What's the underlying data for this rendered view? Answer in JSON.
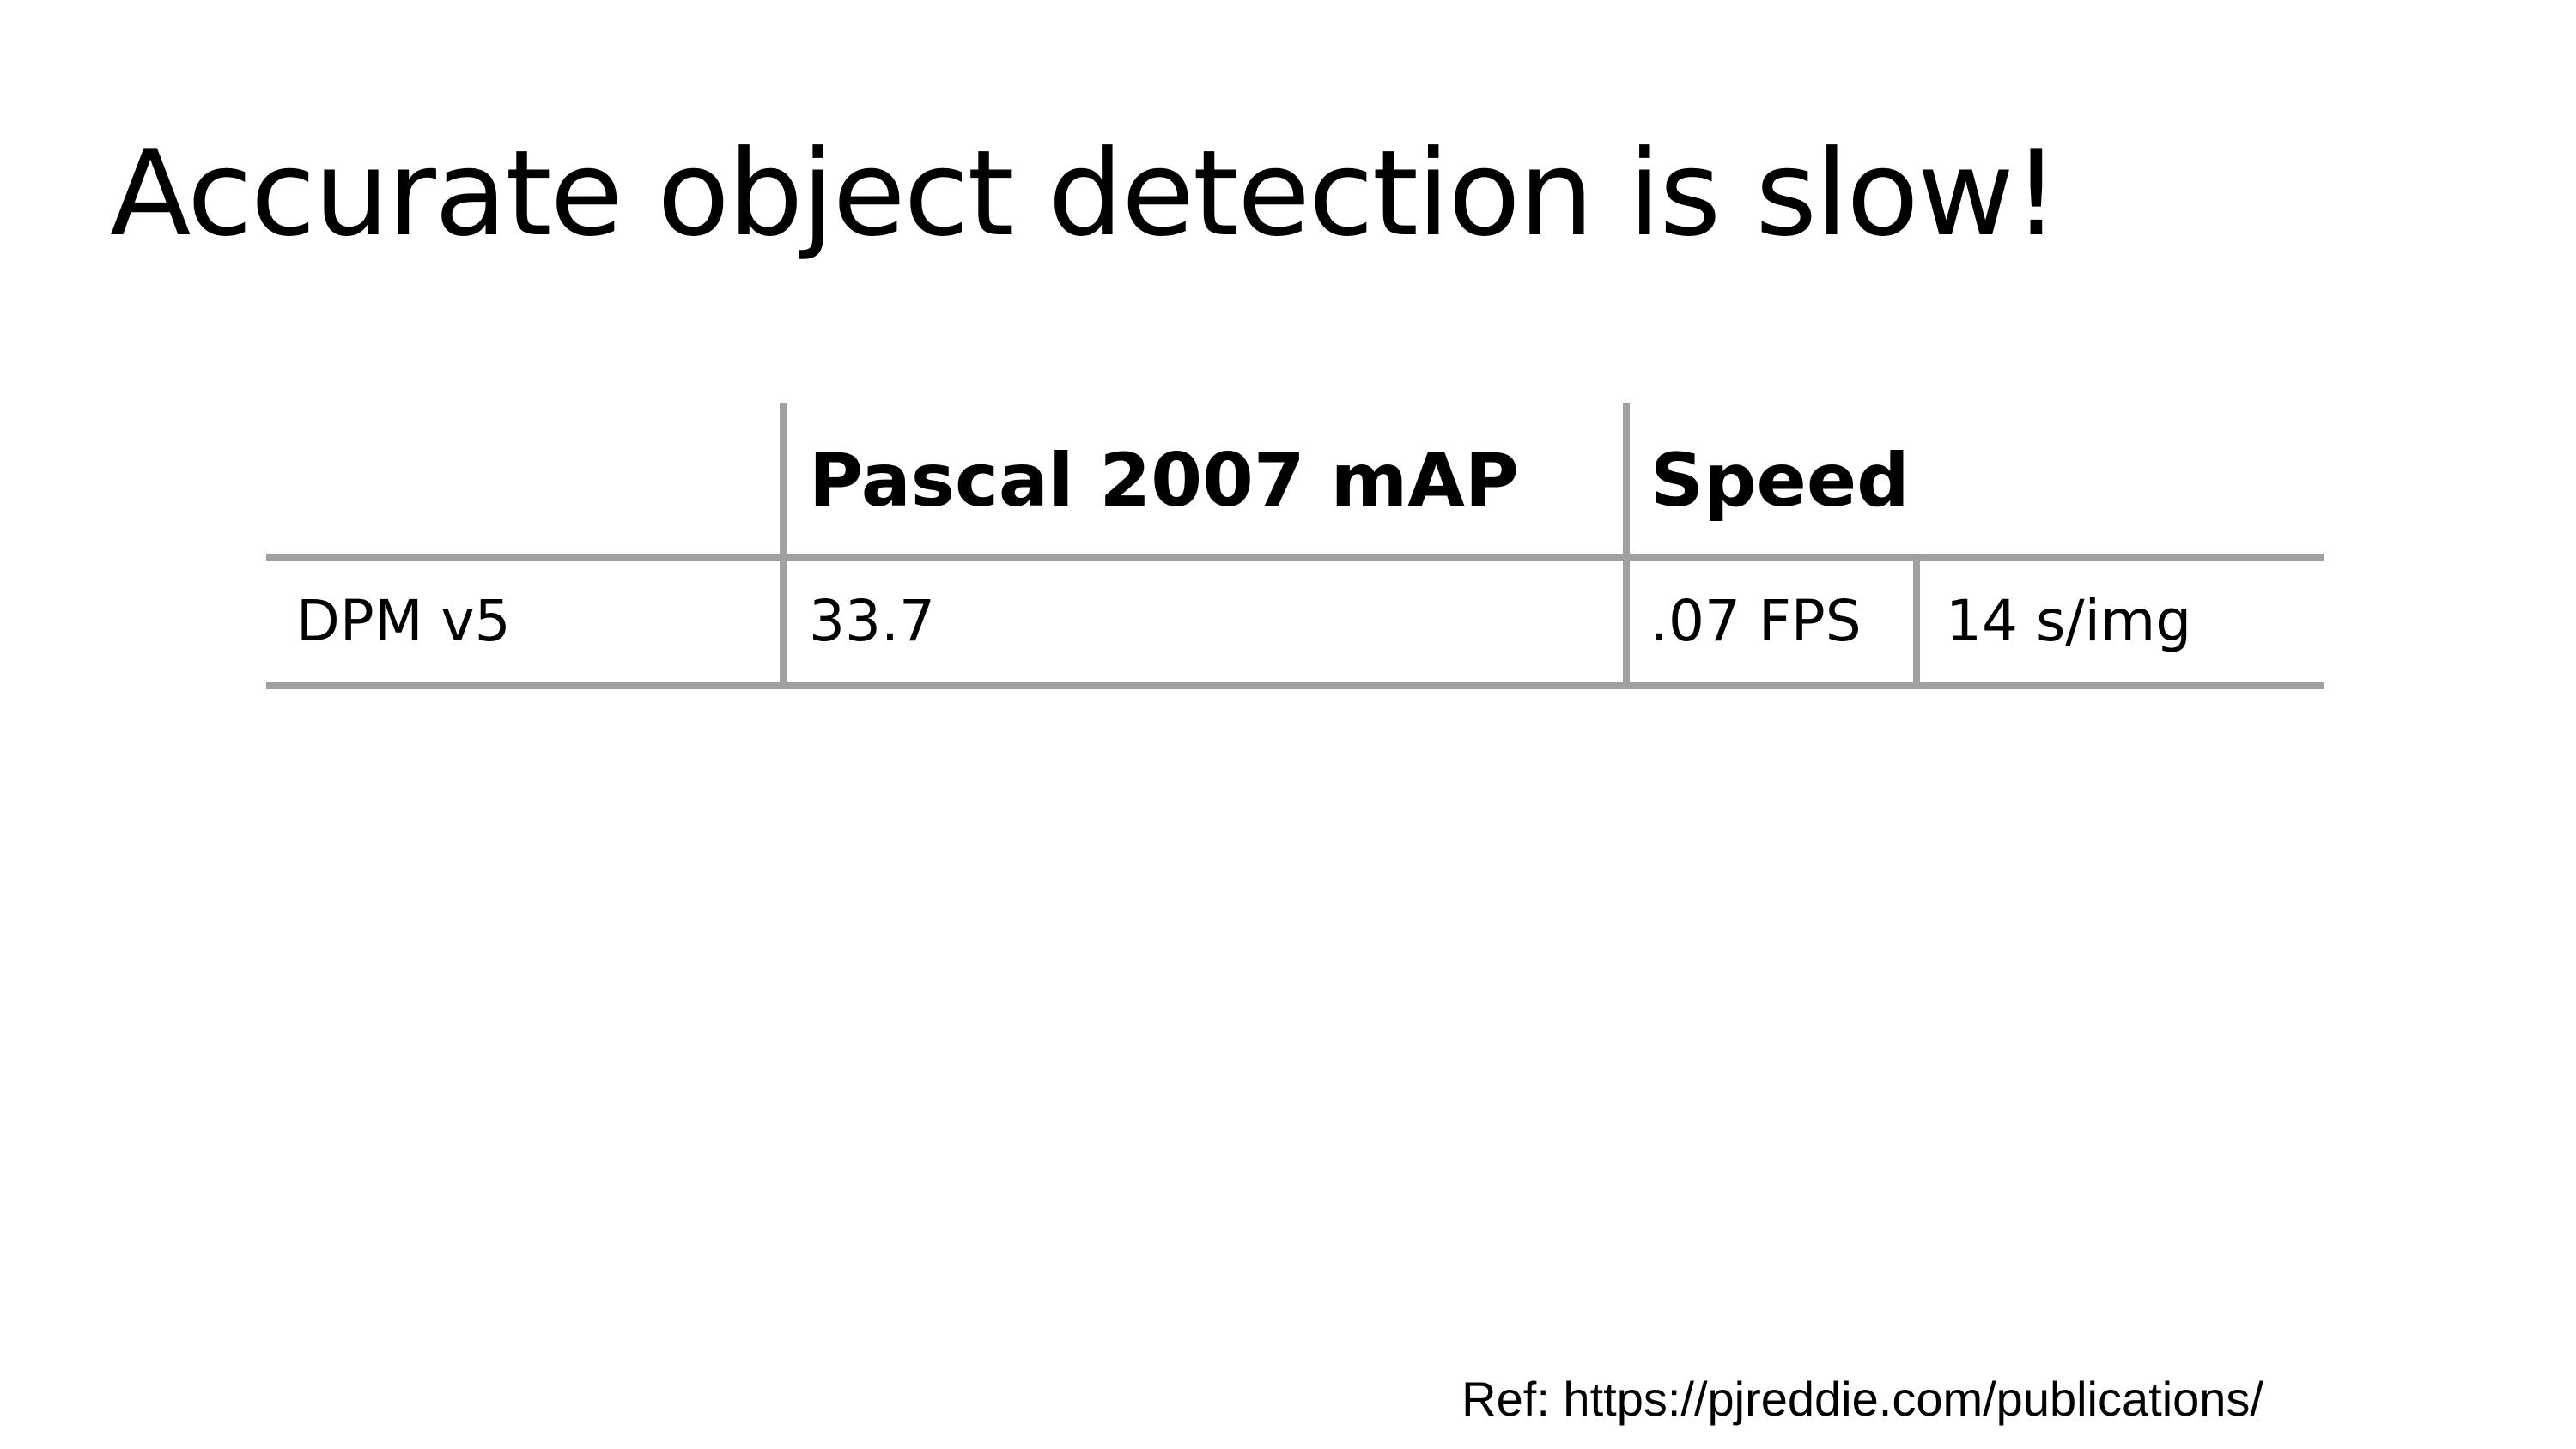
{
  "slide": {
    "title": "Accurate object detection is slow!",
    "reference": "Ref: https://pjreddie.com/publications/"
  },
  "table": {
    "headers": {
      "metric": "Pascal 2007 mAP",
      "speed": "Speed"
    },
    "rows": [
      {
        "method": "DPM v5",
        "map": "33.7",
        "fps": ".07 FPS",
        "time_per_image": "14 s/img"
      }
    ]
  },
  "colors": {
    "background": "#ffffff",
    "text": "#000000",
    "rule": "#a0a0a0"
  }
}
